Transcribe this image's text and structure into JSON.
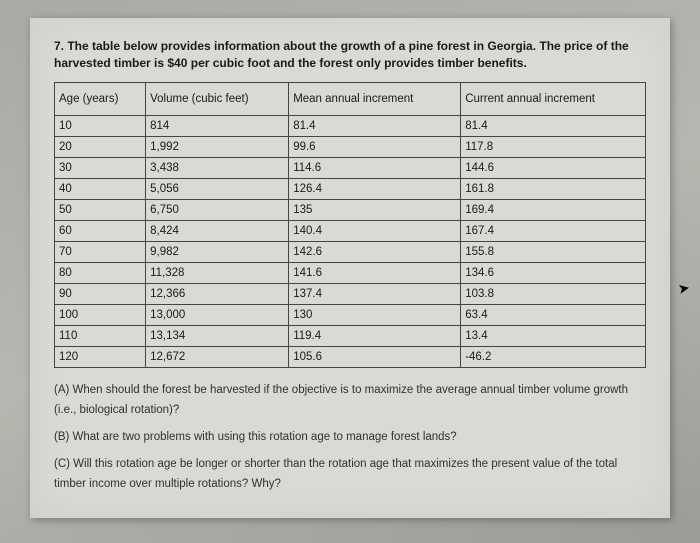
{
  "intro": "7. The table below provides information about the growth of a pine forest in Georgia. The price of the harvested timber is $40 per cubic foot and the forest only provides timber benefits.",
  "table": {
    "columns": [
      "Age (years)",
      "Volume (cubic feet)",
      "Mean annual increment",
      "Current annual increment"
    ],
    "rows": [
      [
        "10",
        "814",
        "81.4",
        "81.4"
      ],
      [
        "20",
        "1,992",
        "99.6",
        "117.8"
      ],
      [
        "30",
        "3,438",
        "114.6",
        "144.6"
      ],
      [
        "40",
        "5,056",
        "126.4",
        "161.8"
      ],
      [
        "50",
        "6,750",
        "135",
        "169.4"
      ],
      [
        "60",
        "8,424",
        "140.4",
        "167.4"
      ],
      [
        "70",
        "9,982",
        "142.6",
        "155.8"
      ],
      [
        "80",
        "11,328",
        "141.6",
        "134.6"
      ],
      [
        "90",
        "12,366",
        "137.4",
        "103.8"
      ],
      [
        "100",
        "13,000",
        "130",
        "63.4"
      ],
      [
        "110",
        "13,134",
        "119.4",
        "13.4"
      ],
      [
        "120",
        "12,672",
        "105.6",
        "-46.2"
      ]
    ],
    "col_widths": [
      "25%",
      "25%",
      "25%",
      "25%"
    ]
  },
  "questions": {
    "a": "(A) When should the forest be harvested if the objective is to maximize the average annual timber volume growth (i.e., biological rotation)?",
    "b": "(B) What are two problems with using this rotation age to manage forest lands?",
    "c": "(C) Will this rotation age be longer or shorter than the rotation age that maximizes the present value of the total timber income over multiple rotations? Why?"
  }
}
